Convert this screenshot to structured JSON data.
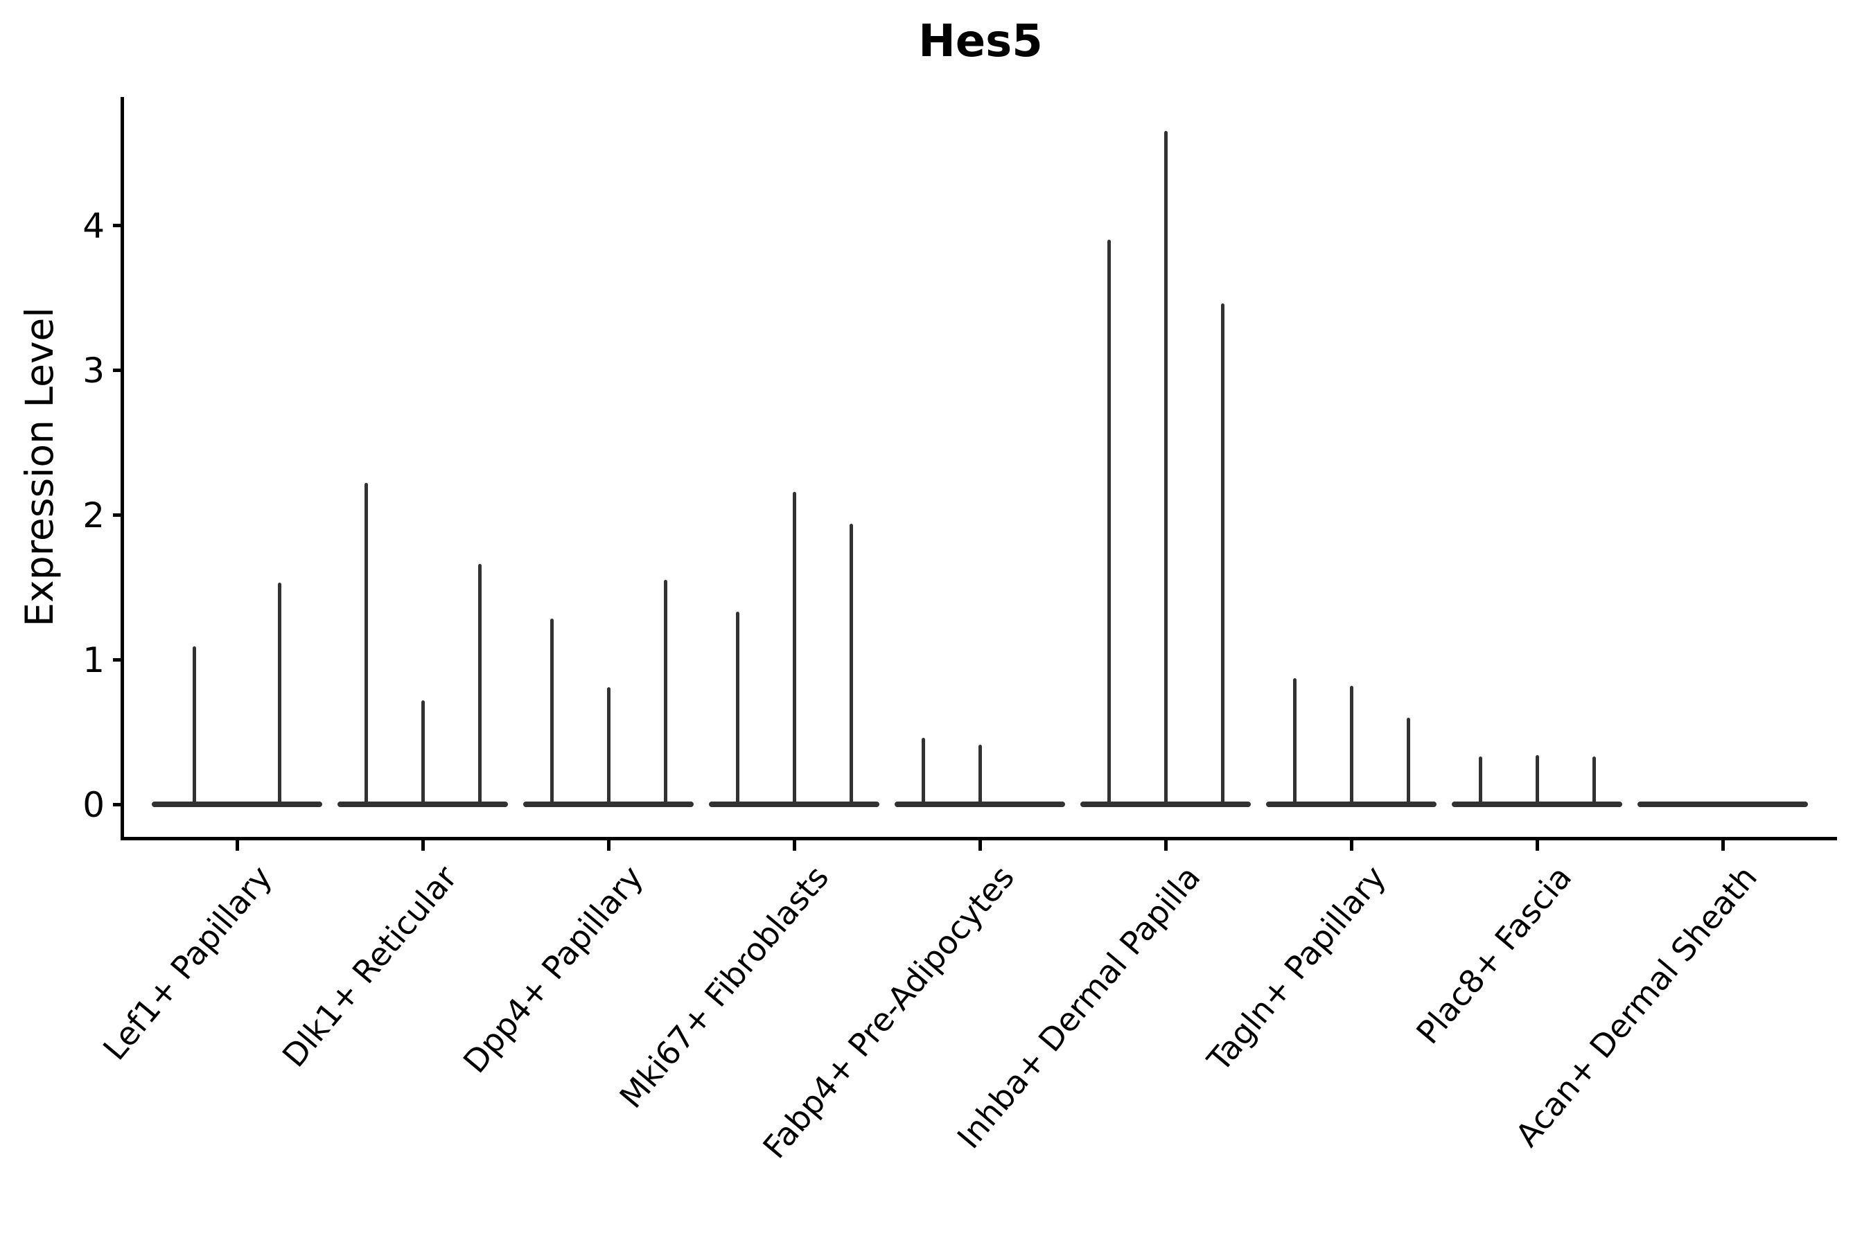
{
  "title": "Hes5",
  "ylabel": "Expression Level",
  "colors": {
    "violin": "#323232",
    "axis": "#000000",
    "background": "#ffffff",
    "text": "#000000"
  },
  "chart_data": {
    "type": "violin",
    "title": "Hes5",
    "xlabel": "",
    "ylabel": "Expression Level",
    "ylim": [
      -0.25,
      4.9
    ],
    "yticks": [
      0,
      1,
      2,
      3,
      4
    ],
    "grid": false,
    "legend_position": "none",
    "style_note": "zero-inflated single-cell expression violins: each violin renders as a flat base line at 0 with a thin vertical tail reaching its maximum expression value",
    "categories": [
      "Lef1+ Papillary",
      "Dlk1+ Reticular",
      "Dpp4+ Papillary",
      "Mki67+ Fibroblasts",
      "Fabp4+ Pre-Adipocytes",
      "Inhba+ Dermal Papilla",
      "Tagln+ Papillary",
      "Plac8+ Fascia",
      "Acan+ Dermal Sheath"
    ],
    "groups": [
      {
        "category": "Lef1+ Papillary",
        "violin_max_values": [
          1.09,
          1.53
        ]
      },
      {
        "category": "Dlk1+ Reticular",
        "violin_max_values": [
          2.22,
          0.72,
          1.66
        ]
      },
      {
        "category": "Dpp4+ Papillary",
        "violin_max_values": [
          1.28,
          0.81,
          1.55
        ]
      },
      {
        "category": "Mki67+ Fibroblasts",
        "violin_max_values": [
          1.33,
          2.16,
          1.94
        ]
      },
      {
        "category": "Fabp4+ Pre-Adipocytes",
        "violin_max_values": [
          0.46,
          0.41,
          0
        ]
      },
      {
        "category": "Inhba+ Dermal Papilla",
        "violin_max_values": [
          3.9,
          4.65,
          3.46
        ]
      },
      {
        "category": "Tagln+ Papillary",
        "violin_max_values": [
          0.87,
          0.82,
          0.6
        ]
      },
      {
        "category": "Plac8+ Fascia",
        "violin_max_values": [
          0.33,
          0.34,
          0.33
        ]
      },
      {
        "category": "Acan+ Dermal Sheath",
        "violin_max_values": [
          0,
          0,
          0
        ]
      }
    ]
  }
}
